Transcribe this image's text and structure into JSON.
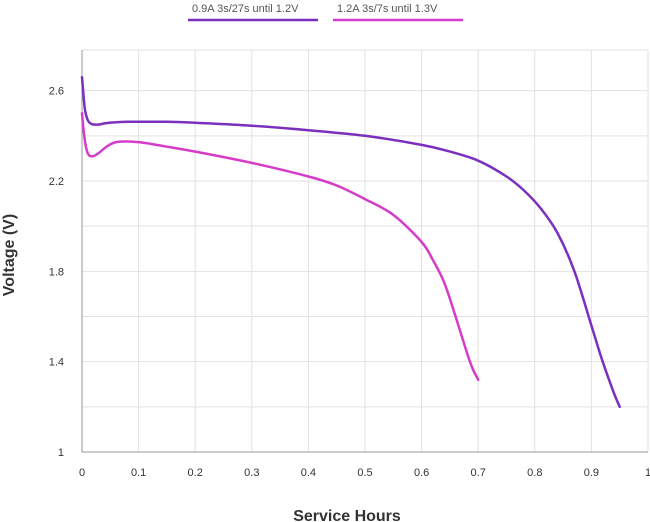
{
  "chart_data": {
    "type": "line",
    "title": "",
    "xlabel": "Service Hours",
    "ylabel": "Voltage (V)",
    "xlim": [
      0,
      1
    ],
    "ylim": [
      1.0,
      2.78
    ],
    "x_ticks": [
      0,
      0.1,
      0.2,
      0.3,
      0.4,
      0.5,
      0.6,
      0.7,
      0.8,
      0.9,
      1
    ],
    "x_tick_labels": [
      "0",
      "0.1",
      "0.2",
      "0.3",
      "0.4",
      "0.5",
      "0.6",
      "0.7",
      "0.8",
      "0.9",
      "1"
    ],
    "y_ticks": [
      1.0,
      1.4,
      1.8,
      2.2,
      2.6
    ],
    "y_tick_labels": [
      "1",
      "1.4",
      "1.8",
      "2.2",
      "2.6"
    ],
    "grid": true,
    "legend_position": "top",
    "series": [
      {
        "name": "0.9A 3s/27s until 1.2V",
        "color": "#7b2fbf",
        "x": [
          0,
          0.002,
          0.005,
          0.01,
          0.015,
          0.02,
          0.03,
          0.04,
          0.06,
          0.08,
          0.1,
          0.15,
          0.2,
          0.3,
          0.4,
          0.5,
          0.6,
          0.65,
          0.7,
          0.75,
          0.78,
          0.81,
          0.84,
          0.87,
          0.9,
          0.92,
          0.94,
          0.95
        ],
        "y": [
          2.66,
          2.6,
          2.52,
          2.47,
          2.455,
          2.45,
          2.45,
          2.455,
          2.46,
          2.462,
          2.462,
          2.462,
          2.458,
          2.445,
          2.425,
          2.4,
          2.36,
          2.33,
          2.29,
          2.22,
          2.16,
          2.08,
          1.97,
          1.8,
          1.56,
          1.4,
          1.26,
          1.2
        ]
      },
      {
        "name": "1.2A 3s/7s until 1.3V",
        "color": "#d63bc9",
        "x": [
          0,
          0.003,
          0.007,
          0.012,
          0.02,
          0.03,
          0.045,
          0.06,
          0.08,
          0.1,
          0.12,
          0.15,
          0.2,
          0.3,
          0.4,
          0.45,
          0.5,
          0.55,
          0.6,
          0.62,
          0.64,
          0.66,
          0.68,
          0.69,
          0.7
        ],
        "y": [
          2.5,
          2.42,
          2.35,
          2.315,
          2.31,
          2.325,
          2.355,
          2.372,
          2.375,
          2.372,
          2.365,
          2.352,
          2.33,
          2.28,
          2.22,
          2.18,
          2.12,
          2.05,
          1.93,
          1.85,
          1.75,
          1.6,
          1.44,
          1.37,
          1.32
        ]
      }
    ]
  }
}
